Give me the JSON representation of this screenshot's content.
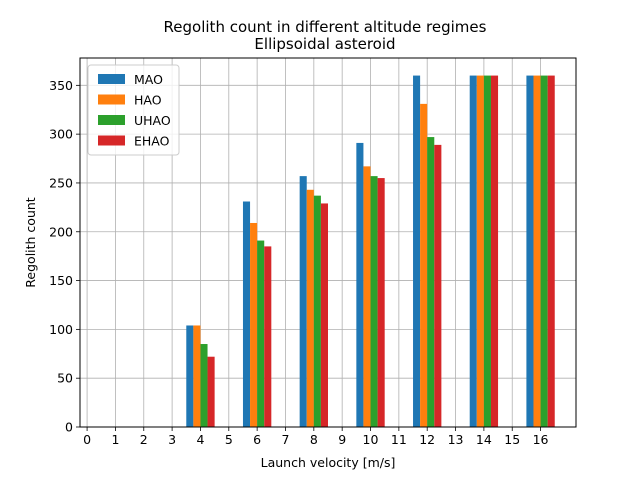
{
  "chart_data": {
    "type": "bar",
    "title": "Regolith count in different altitude regimes",
    "subtitle": "Ellipsoidal asteroid",
    "xlabel": "Launch velocity [m/s]",
    "ylabel": "Regolith count",
    "x_ticks": [
      0,
      1,
      2,
      3,
      4,
      5,
      6,
      7,
      8,
      9,
      10,
      11,
      12,
      13,
      14,
      15,
      16
    ],
    "y_ticks": [
      0,
      50,
      100,
      150,
      200,
      250,
      300,
      350
    ],
    "xlim": [
      -0.25,
      17.25
    ],
    "ylim": [
      0,
      378
    ],
    "grid": true,
    "legend_position": "top-left",
    "categories": [
      4,
      6,
      8,
      10,
      12,
      14,
      16
    ],
    "series": [
      {
        "name": "MAO",
        "color": "#1f77b4",
        "values": [
          104,
          231,
          257,
          291,
          360,
          360,
          360
        ]
      },
      {
        "name": "HAO",
        "color": "#ff7f0e",
        "values": [
          104,
          209,
          243,
          267,
          331,
          360,
          360
        ]
      },
      {
        "name": "UHAO",
        "color": "#2ca02c",
        "values": [
          85,
          191,
          237,
          257,
          297,
          360,
          360
        ]
      },
      {
        "name": "EHAO",
        "color": "#d62728",
        "values": [
          72,
          185,
          229,
          255,
          289,
          360,
          360
        ]
      }
    ]
  }
}
